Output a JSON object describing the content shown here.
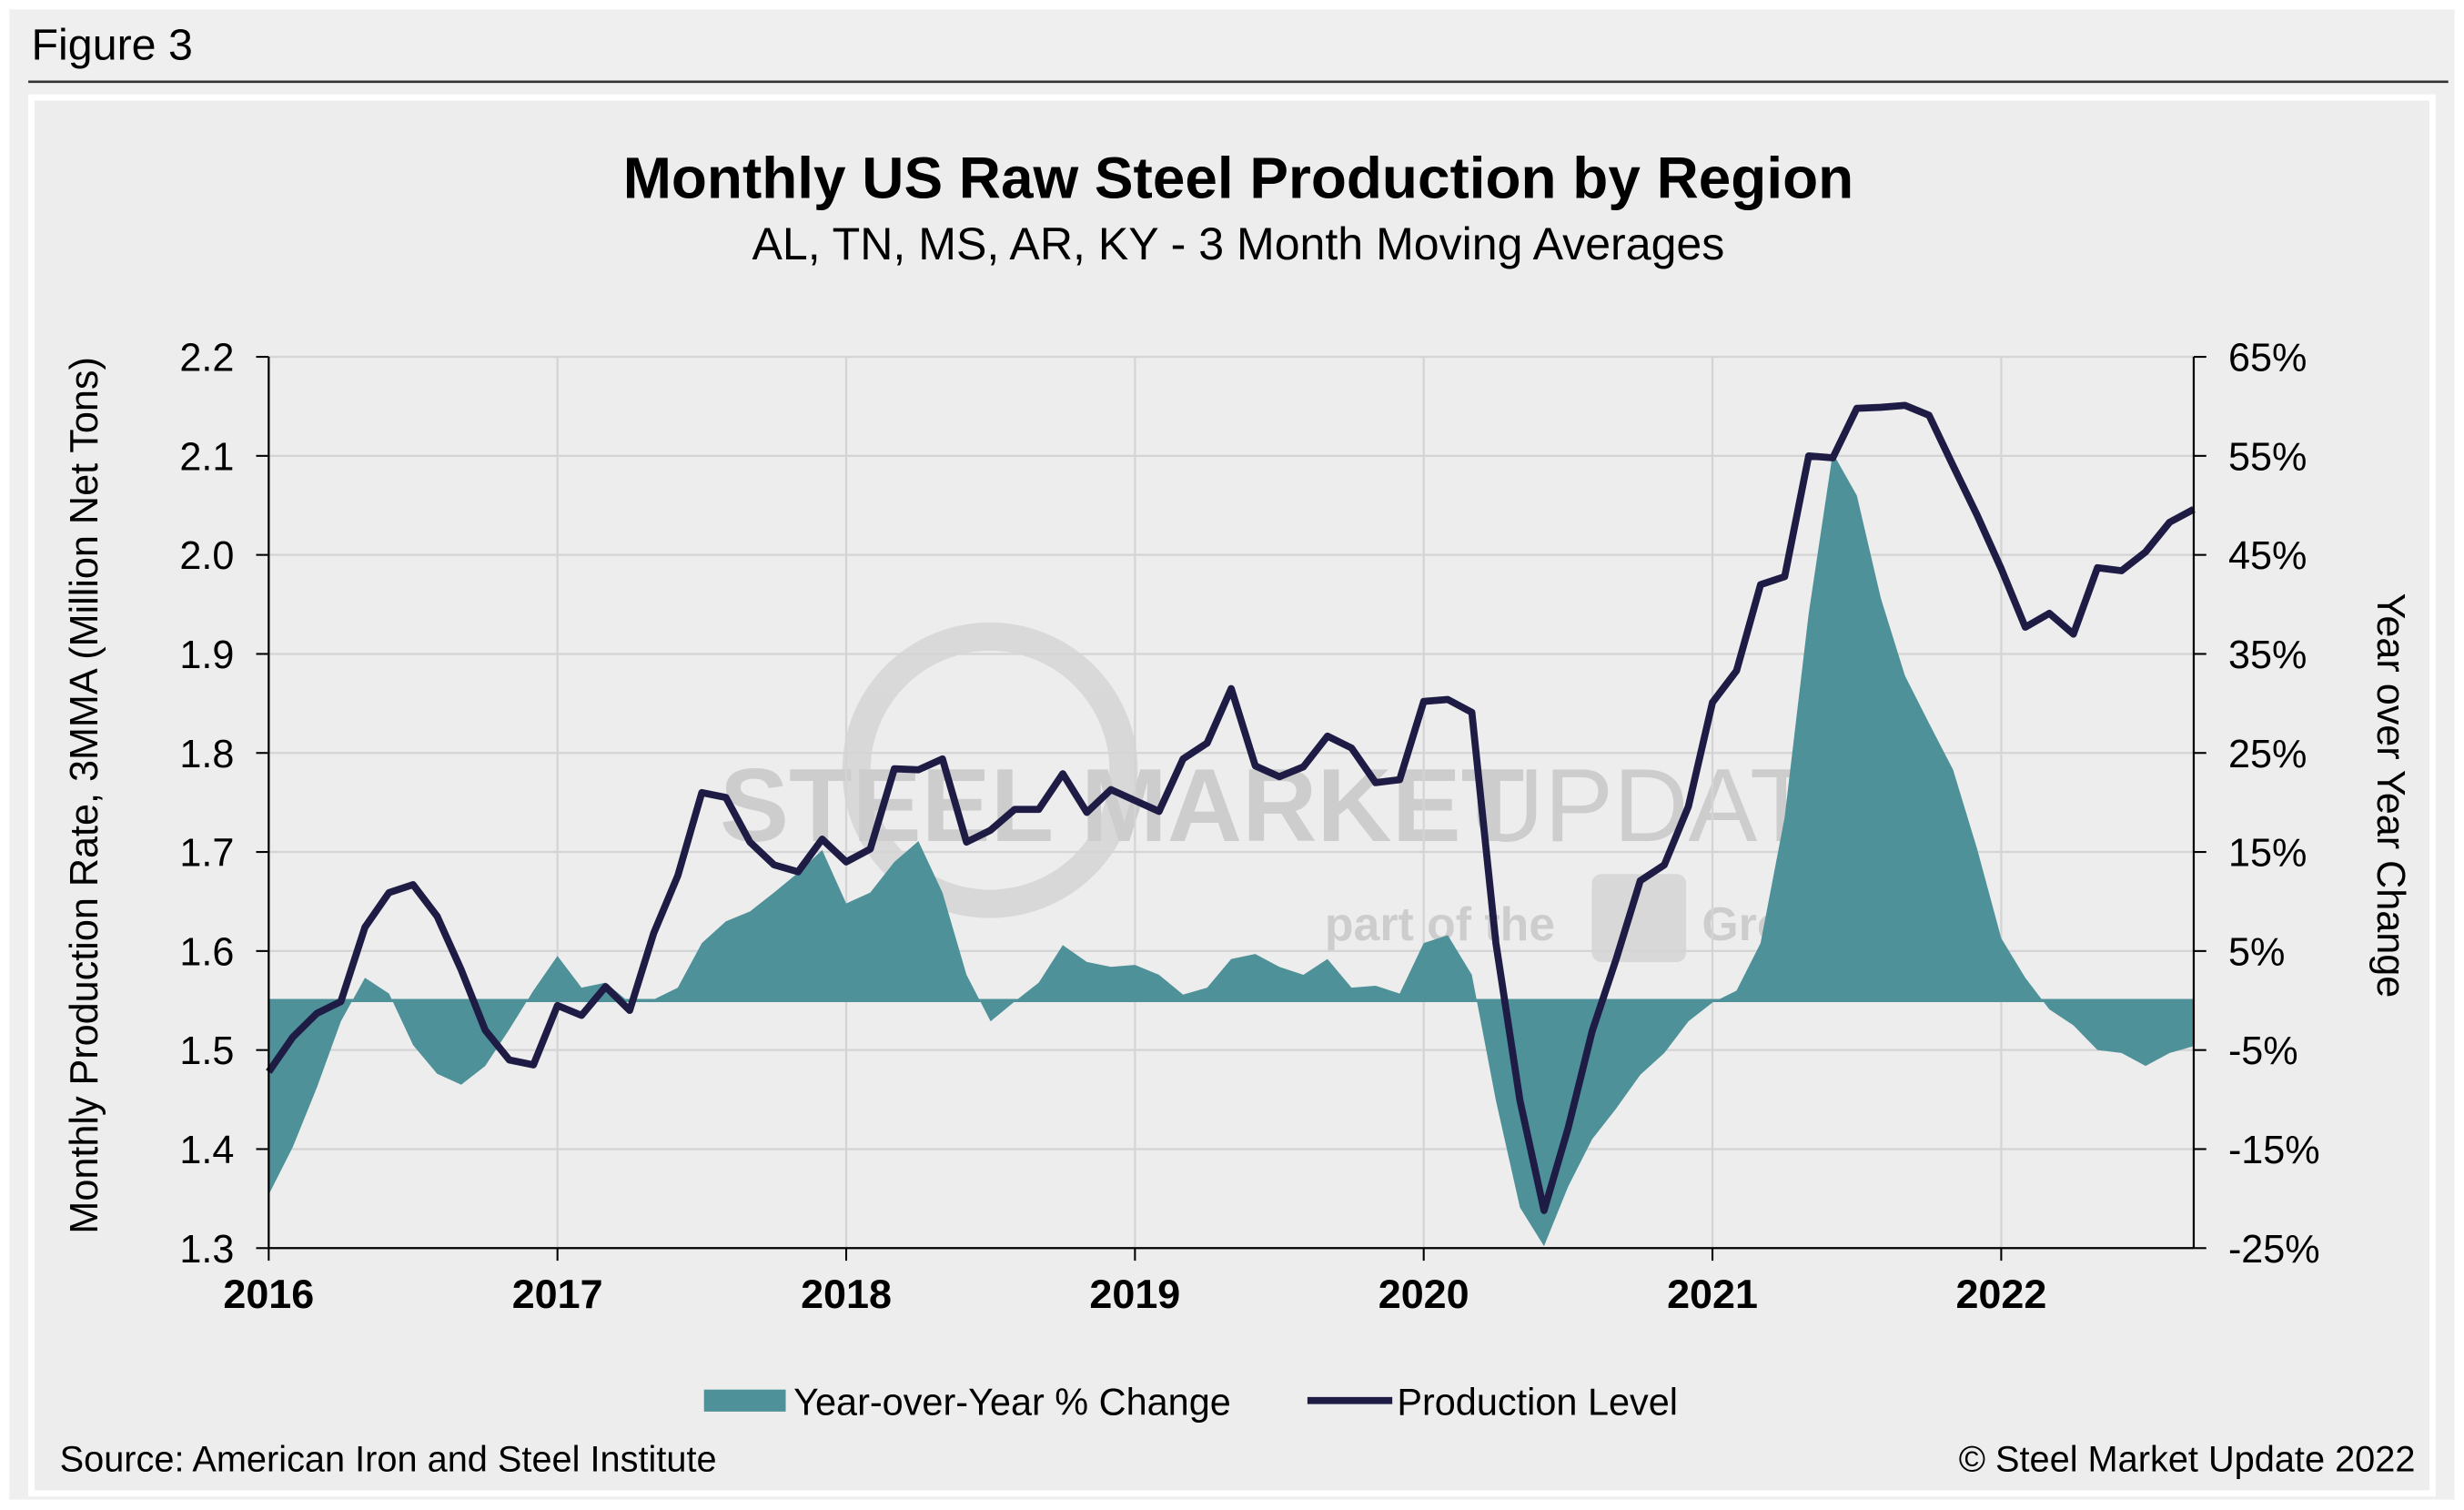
{
  "figure_label": "Figure 3",
  "chart_data": {
    "type": "combo",
    "title": "Monthly US Raw Steel Production by Region",
    "subtitle": "AL, TN, MS, AR, KY - 3 Month Moving Averages",
    "y_label": "Monthly Production Rate, 3MMA (Million Net Tons)",
    "y2_label": "Year over Year Change",
    "source": "Source: American Iron and Steel Institute",
    "copyright": "© Steel Market Update 2022",
    "watermark": {
      "brand": "STEEL MARKET",
      "brand_end": "UPDATE",
      "tagline": "part of the",
      "tagline_end": "Group"
    },
    "legend": "bottom",
    "grid": true,
    "categories": [
      "2016",
      null,
      null,
      null,
      null,
      null,
      null,
      null,
      null,
      null,
      null,
      null,
      "2017",
      null,
      null,
      null,
      null,
      null,
      null,
      null,
      null,
      null,
      null,
      null,
      "2018",
      null,
      null,
      null,
      null,
      null,
      null,
      null,
      null,
      null,
      null,
      null,
      "2019",
      null,
      null,
      null,
      null,
      null,
      null,
      null,
      null,
      null,
      null,
      null,
      "2020",
      null,
      null,
      null,
      null,
      null,
      null,
      null,
      null,
      null,
      null,
      null,
      "2021",
      null,
      null,
      null,
      null,
      null,
      null,
      null,
      null,
      null,
      null,
      null,
      "2022",
      null,
      null,
      null,
      null,
      null,
      null,
      null,
      null
    ],
    "ylim": [
      1.3,
      2.2
    ],
    "yticks": [
      1.3,
      1.4,
      1.5,
      1.6,
      1.7,
      1.8,
      1.9,
      {
        "value": 2,
        "label": "2.0"
      },
      2.1,
      2.2
    ],
    "y2lim": [
      -25,
      65
    ],
    "y2ticks": [
      {
        "value": -25,
        "label": "-25%"
      },
      {
        "value": -15,
        "label": "-15%"
      },
      {
        "value": -5,
        "label": "-5%"
      },
      {
        "value": 5,
        "label": "5%"
      },
      {
        "value": 15,
        "label": "15%"
      },
      {
        "value": 25,
        "label": "25%"
      },
      {
        "value": 35,
        "label": "35%"
      },
      {
        "value": 45,
        "label": "45%"
      },
      {
        "value": 55,
        "label": "55%"
      },
      {
        "value": 65,
        "label": "65%"
      }
    ],
    "series": [
      {
        "name": "Year-over-Year % Change",
        "type": "area",
        "axis": "y2",
        "color": "#4e9199",
        "values": [
          -19.6,
          -14.8,
          -8.8,
          -2.1,
          2.3,
          0.7,
          -4.5,
          -7.4,
          -8.5,
          -6.6,
          -2.9,
          1.0,
          4.5,
          1.3,
          1.8,
          -0.2,
          0.1,
          1.3,
          5.8,
          8.0,
          9.0,
          10.9,
          12.9,
          15.2,
          9.8,
          10.9,
          14.0,
          16.1,
          10.9,
          2.6,
          -2.1,
          -0.1,
          1.8,
          5.6,
          3.9,
          3.4,
          3.6,
          2.6,
          0.6,
          1.3,
          4.2,
          4.7,
          3.4,
          2.6,
          4.2,
          1.3,
          1.5,
          0.7,
          5.8,
          6.6,
          2.6,
          -10.1,
          -20.9,
          -24.8,
          -18.8,
          -14.0,
          -10.9,
          -7.5,
          -5.3,
          -2.1,
          -0.2,
          1.0,
          5.8,
          18.5,
          39.1,
          55.3,
          51.0,
          40.6,
          32.8,
          28.0,
          23.3,
          15.3,
          6.3,
          2.3,
          -0.9,
          -2.5,
          -5.0,
          -5.3,
          -6.6,
          -5.3,
          -4.6
        ]
      },
      {
        "name": "Production Level",
        "type": "line",
        "color": "#1e1b45",
        "values": [
          1.478,
          1.513,
          1.537,
          1.549,
          1.624,
          1.659,
          1.667,
          1.635,
          1.581,
          1.52,
          1.49,
          1.485,
          1.545,
          1.535,
          1.564,
          1.54,
          1.618,
          1.676,
          1.76,
          1.755,
          1.71,
          1.687,
          1.68,
          1.713,
          1.69,
          1.703,
          1.784,
          1.783,
          1.794,
          1.71,
          1.722,
          1.743,
          1.743,
          1.779,
          1.74,
          1.763,
          1.752,
          1.741,
          1.794,
          1.81,
          1.865,
          1.787,
          1.776,
          1.786,
          1.817,
          1.805,
          1.77,
          1.773,
          1.852,
          1.854,
          1.841,
          1.608,
          1.449,
          1.338,
          1.421,
          1.519,
          1.592,
          1.671,
          1.687,
          1.746,
          1.851,
          1.883,
          1.97,
          1.978,
          2.1,
          2.098,
          2.148,
          2.149,
          2.151,
          2.141,
          2.09,
          2.04,
          1.986,
          1.927,
          1.941,
          1.92,
          1.987,
          1.984,
          2.003,
          2.033,
          2.046
        ]
      }
    ]
  }
}
